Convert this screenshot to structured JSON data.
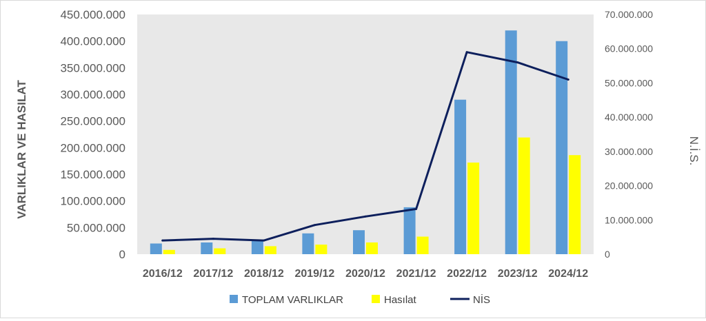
{
  "chart_data": {
    "type": "bar",
    "categories": [
      "2016/12",
      "2017/12",
      "2018/12",
      "2019/12",
      "2020/12",
      "2021/12",
      "2022/12",
      "2023/12",
      "2024/12"
    ],
    "series": [
      {
        "name": "TOPLAM VARLIKLAR",
        "type": "bar",
        "axis": "left",
        "color": "#5b9bd5",
        "values": [
          20000000,
          22000000,
          27000000,
          39000000,
          45000000,
          88000000,
          290000000,
          420000000,
          400000000
        ]
      },
      {
        "name": "Hasılat",
        "type": "bar",
        "axis": "left",
        "color": "#ffff00",
        "values": [
          8000000,
          11000000,
          15000000,
          18000000,
          22000000,
          33000000,
          172000000,
          219000000,
          186000000
        ]
      },
      {
        "name": "NİS",
        "type": "line",
        "axis": "right",
        "color": "#0d1f5c",
        "values": [
          4000000,
          4500000,
          4000000,
          8500000,
          11000000,
          13200000,
          59000000,
          56000000,
          51000000
        ]
      }
    ],
    "ylabel": "VARLIKLAR VE HASILAT",
    "y2label": "N.İ.S.",
    "ylim": [
      0,
      450000000
    ],
    "y2lim": [
      0,
      70000000
    ],
    "yticks": [
      "0",
      "50.000.000",
      "100.000.000",
      "150.000.000",
      "200.000.000",
      "250.000.000",
      "300.000.000",
      "350.000.000",
      "400.000.000",
      "450.000.000"
    ],
    "y2ticks": [
      "0",
      "10.000.000",
      "20.000.000",
      "30.000.000",
      "40.000.000",
      "50.000.000",
      "60.000.000",
      "70.000.000"
    ],
    "grid": false,
    "plot_background": "#e8e8e8",
    "legend_position": "bottom"
  }
}
